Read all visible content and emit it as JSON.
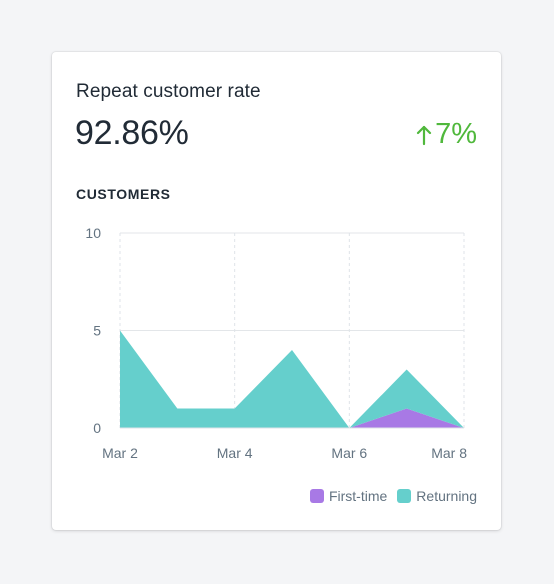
{
  "card": {
    "title": "Repeat customer rate",
    "value": "92.86%",
    "change": "7%",
    "change_icon": "arrow-up-icon",
    "change_color": "#50b83c",
    "section_label": "CUSTOMERS"
  },
  "chart_data": {
    "type": "area",
    "title": "",
    "xlabel": "",
    "ylabel": "",
    "stacked": true,
    "x": [
      "Mar 2",
      "Mar 3",
      "Mar 4",
      "Mar 5",
      "Mar 6",
      "Mar 7",
      "Mar 8"
    ],
    "x_tick_labels": [
      "Mar 2",
      "Mar 4",
      "Mar 6",
      "Mar 8"
    ],
    "ylim": [
      0,
      10
    ],
    "y_ticks": [
      0,
      5,
      10
    ],
    "grid": true,
    "legend_position": "bottom-right",
    "series": [
      {
        "name": "First-time",
        "color": "#a879e5",
        "values": [
          0,
          0,
          0,
          0,
          0,
          1,
          0
        ]
      },
      {
        "name": "Returning",
        "color": "#65cfcc",
        "values": [
          5,
          1,
          1,
          4,
          0,
          2,
          0
        ]
      }
    ]
  }
}
